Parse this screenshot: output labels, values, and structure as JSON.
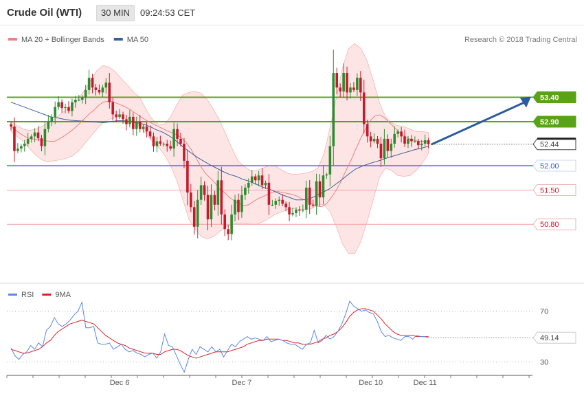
{
  "header": {
    "title": "Crude Oil (WTI)",
    "timeframe": "30 MIN",
    "time": "09:24:53 CET"
  },
  "colors": {
    "bull": "#2e8b2e",
    "bear": "#c9182b",
    "ma20": "#f08080",
    "ma50": "#3a5f9a",
    "band_fill": "#fde0e0",
    "resistance": "#5aa317",
    "support_strong": "#2a5bd7",
    "support": "#f4a0a0",
    "arrow": "#2d5c9c",
    "rsi": "#5b86e5",
    "rsi_ma": "#e02020"
  },
  "chart_data": [
    {
      "type": "candlestick",
      "title": "",
      "legend": [
        {
          "name": "MA 20 + Bollinger Bands",
          "color": "#f08080"
        },
        {
          "name": "MA 50",
          "color": "#3a5f9a"
        }
      ],
      "credit": "Research © 2018 Trading Central",
      "ylim": [
        49.62,
        54.52
      ],
      "x_labels": [
        {
          "label": "Dec 6",
          "index": 32
        },
        {
          "label": "Dec 7",
          "index": 68
        },
        {
          "label": "Dec 10",
          "index": 106
        },
        {
          "label": "Dec 11",
          "index": 122
        }
      ],
      "levels": [
        {
          "label": "53.40",
          "value": 53.4,
          "kind": "resistance"
        },
        {
          "label": "52.90",
          "value": 52.9,
          "kind": "resistance"
        },
        {
          "label": "52.00",
          "value": 52.0,
          "kind": "support_strong"
        },
        {
          "label": "51.50",
          "value": 51.5,
          "kind": "support"
        },
        {
          "label": "50.80",
          "value": 50.8,
          "kind": "support"
        }
      ],
      "current_price": 52.44,
      "current_label": "52.44",
      "closes": [
        52.8,
        52.3,
        52.35,
        52.4,
        52.45,
        52.55,
        52.6,
        52.68,
        52.56,
        52.4,
        52.75,
        52.9,
        53.0,
        53.2,
        53.3,
        53.18,
        53.2,
        53.12,
        53.3,
        53.35,
        53.35,
        53.4,
        53.55,
        53.8,
        53.6,
        53.55,
        53.5,
        53.6,
        53.7,
        53.3,
        53.05,
        53.0,
        53.05,
        52.95,
        52.85,
        53.0,
        52.75,
        52.9,
        52.75,
        52.8,
        52.7,
        52.6,
        52.4,
        52.5,
        52.45,
        52.45,
        52.4,
        52.35,
        52.75,
        52.55,
        52.45,
        52.1,
        51.45,
        51.15,
        50.75,
        51.3,
        51.6,
        51.4,
        50.9,
        51.4,
        51.2,
        51.7,
        51.0,
        50.7,
        50.6,
        51.0,
        51.3,
        51.05,
        51.4,
        51.55,
        51.65,
        51.78,
        51.7,
        51.8,
        51.6,
        51.65,
        51.2,
        51.2,
        51.28,
        51.3,
        51.22,
        51.15,
        51.0,
        51.03,
        51.1,
        51.08,
        51.1,
        51.55,
        51.2,
        51.18,
        51.68,
        51.35,
        51.8,
        51.82,
        52.4,
        53.9,
        53.6,
        53.52,
        53.9,
        53.5,
        53.6,
        53.55,
        53.8,
        53.5,
        52.85,
        52.6,
        52.5,
        52.55,
        52.45,
        52.15,
        52.55,
        52.3,
        52.45,
        52.65,
        52.7,
        52.6,
        52.45,
        52.55,
        52.5,
        52.5,
        52.42,
        52.45,
        52.52,
        52.44
      ],
      "ma20": [
        52.8,
        52.72,
        52.65,
        52.59,
        52.55,
        52.54,
        52.53,
        52.51,
        52.5,
        52.5,
        52.55,
        52.61,
        52.68,
        52.76,
        52.85,
        52.95,
        53.05,
        53.13,
        53.23,
        53.3,
        53.32,
        53.31,
        53.27,
        53.23,
        53.18,
        53.12,
        53.05,
        52.98,
        52.92,
        52.87,
        52.82,
        52.77,
        52.72,
        52.68,
        52.64,
        52.58,
        52.48,
        52.35,
        52.18,
        52.0,
        51.85,
        51.75,
        51.65,
        51.52,
        51.45,
        51.35,
        51.28,
        51.22,
        51.18,
        51.2,
        51.27,
        51.33,
        51.37,
        51.42,
        51.46,
        51.47,
        51.45,
        51.43,
        51.41,
        51.37,
        51.32,
        51.28,
        51.22,
        51.17,
        51.16,
        51.22,
        51.35,
        51.5,
        51.68,
        51.9,
        52.1,
        52.33,
        52.55,
        52.75,
        52.92,
        53.02,
        53.04,
        52.98,
        52.88,
        52.78,
        52.68,
        52.6,
        52.55,
        52.52,
        52.5,
        52.5,
        52.49
      ],
      "ma50": [
        53.3,
        53.25,
        53.2,
        53.15,
        53.1,
        53.05,
        53.0,
        52.98,
        52.95,
        52.93,
        52.92,
        52.91,
        52.9,
        52.89,
        52.88,
        52.9,
        52.92,
        52.92,
        52.9,
        52.88,
        52.85,
        52.8,
        52.73,
        52.68,
        52.6,
        52.5,
        52.38,
        52.28,
        52.18,
        52.1,
        52.02,
        51.95,
        51.88,
        51.82,
        51.78,
        51.72,
        51.68,
        51.62,
        51.56,
        51.52,
        51.46,
        51.4,
        51.35,
        51.3,
        51.3,
        51.32,
        51.38,
        51.45,
        51.52,
        51.62,
        51.72,
        51.83,
        51.93,
        51.99,
        52.04,
        52.08,
        52.12,
        52.17,
        52.21,
        52.25,
        52.29,
        52.33,
        52.36,
        52.4
      ],
      "boll_upper": [
        52.9,
        52.82,
        52.75,
        52.72,
        52.75,
        52.8,
        52.88,
        52.95,
        53.05,
        53.15,
        53.25,
        53.38,
        53.55,
        53.75,
        53.95,
        54.05,
        54.02,
        53.92,
        53.78,
        53.65,
        53.5,
        53.4,
        53.15,
        52.95,
        52.85,
        52.85,
        53.0,
        53.25,
        53.45,
        53.5,
        53.52,
        53.48,
        53.35,
        53.15,
        52.92,
        52.65,
        52.35,
        52.1,
        51.98,
        51.9,
        51.9,
        51.95,
        52.0,
        52.0,
        51.92,
        51.85,
        51.82,
        51.83,
        51.85,
        51.88,
        51.95,
        52.25,
        52.8,
        53.4,
        54.0,
        54.4,
        54.5,
        54.4,
        54.15,
        53.75,
        53.3,
        53.0,
        52.88,
        52.82,
        52.8,
        52.75,
        52.7,
        52.7,
        52.68
      ],
      "boll_lower": [
        52.7,
        52.6,
        52.5,
        52.35,
        52.22,
        52.12,
        52.08,
        52.1,
        52.12,
        52.15,
        52.2,
        52.3,
        52.45,
        52.6,
        52.75,
        52.88,
        52.95,
        52.98,
        52.98,
        52.96,
        52.9,
        52.8,
        52.65,
        52.5,
        52.38,
        52.22,
        52.0,
        51.7,
        51.3,
        50.9,
        50.7,
        50.55,
        50.5,
        50.55,
        50.65,
        50.75,
        50.8,
        50.82,
        50.82,
        50.8,
        50.8,
        50.85,
        50.92,
        51.0,
        51.05,
        51.1,
        51.12,
        51.1,
        51.1,
        51.12,
        51.2,
        51.2,
        51.05,
        50.75,
        50.4,
        50.2,
        50.2,
        50.45,
        50.85,
        51.3,
        51.75,
        51.95,
        51.9,
        51.8,
        51.78,
        51.8,
        51.9,
        52.05,
        52.25,
        52.4
      ]
    },
    {
      "type": "line",
      "title": "",
      "legend": [
        {
          "name": "RSI",
          "color": "#5b86e5"
        },
        {
          "name": "9MA",
          "color": "#e02020"
        }
      ],
      "ylim": [
        20,
        85
      ],
      "yticks": [
        {
          "label": "70",
          "value": 70
        },
        {
          "label": "30",
          "value": 30
        }
      ],
      "current_label": "49.14",
      "current_value": 49.14,
      "rsi": [
        41,
        35,
        32,
        36,
        38,
        43,
        40,
        45,
        42,
        55,
        58,
        65,
        60,
        58,
        60,
        63,
        67,
        70,
        77,
        57,
        57,
        58,
        45,
        44,
        44,
        45,
        40,
        42,
        44,
        40,
        38,
        39,
        37,
        36,
        34,
        36,
        37,
        33,
        38,
        52,
        43,
        42,
        35,
        28,
        22,
        32,
        40,
        36,
        42,
        40,
        38,
        42,
        38,
        40,
        34,
        39,
        44,
        42,
        46,
        48,
        50,
        48,
        49,
        48,
        47,
        50,
        46,
        47,
        48,
        47,
        45,
        44,
        44,
        42,
        40,
        44,
        45,
        55,
        45,
        47,
        51,
        48,
        50,
        54,
        60,
        68,
        78,
        74,
        72,
        70,
        71,
        69,
        68,
        62,
        54,
        50,
        51,
        49,
        48,
        47,
        50,
        50,
        48,
        51,
        50,
        50,
        49.14
      ],
      "rsi_ma": [
        40,
        39,
        38,
        37,
        37,
        38,
        39,
        40,
        42,
        45,
        47,
        51,
        54,
        56,
        58,
        60,
        61,
        62,
        63,
        62,
        61,
        60,
        57,
        54,
        51,
        49,
        47,
        45,
        44,
        43,
        41,
        40,
        39,
        38,
        37,
        37,
        37,
        36,
        36,
        38,
        39,
        40,
        40,
        39,
        37,
        35,
        34,
        33,
        34,
        35,
        36,
        37,
        38,
        38,
        38,
        38,
        39,
        40,
        41,
        42,
        44,
        45,
        46,
        47,
        47,
        48,
        48,
        48,
        48,
        47,
        47,
        46,
        45,
        45,
        44,
        44,
        44,
        45,
        46,
        48,
        49,
        51,
        52,
        54,
        57,
        61,
        66,
        69,
        71,
        72,
        72,
        71,
        70,
        67,
        64,
        60,
        57,
        54,
        52,
        51,
        51,
        51,
        51,
        50,
        50,
        50,
        50
      ]
    }
  ]
}
